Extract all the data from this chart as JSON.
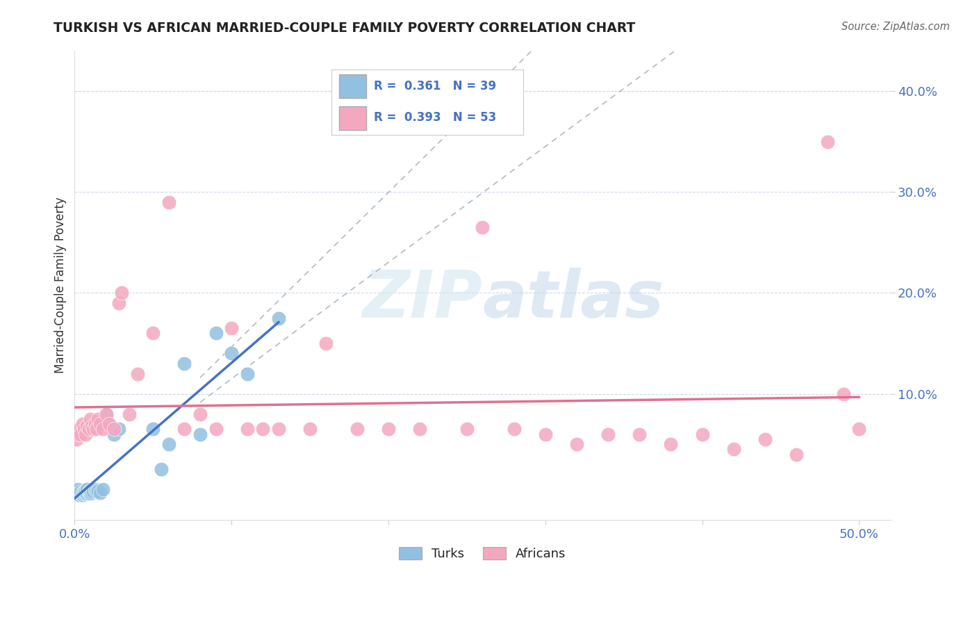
{
  "title": "TURKISH VS AFRICAN MARRIED-COUPLE FAMILY POVERTY CORRELATION CHART",
  "source": "Source: ZipAtlas.com",
  "ylabel": "Married-Couple Family Poverty",
  "xlim": [
    0.0,
    0.52
  ],
  "ylim": [
    -0.025,
    0.44
  ],
  "xtick_positions": [
    0.0,
    0.5
  ],
  "xtick_labels": [
    "0.0%",
    "50.0%"
  ],
  "ytick_positions": [
    0.1,
    0.2,
    0.3,
    0.4
  ],
  "ytick_labels": [
    "10.0%",
    "20.0%",
    "30.0%",
    "40.0%"
  ],
  "R_turks": 0.361,
  "N_turks": 39,
  "R_africans": 0.393,
  "N_africans": 53,
  "turks_color": "#92c0e0",
  "africans_color": "#f4a8c0",
  "turks_line_color": "#4472c4",
  "africans_line_color": "#e07090",
  "ci_color": "#b0b8c8",
  "grid_color": "#d0d8e8",
  "turks_x": [
    0.001,
    0.002,
    0.002,
    0.003,
    0.003,
    0.004,
    0.004,
    0.005,
    0.005,
    0.006,
    0.006,
    0.007,
    0.007,
    0.008,
    0.008,
    0.009,
    0.009,
    0.01,
    0.01,
    0.011,
    0.012,
    0.013,
    0.014,
    0.015,
    0.016,
    0.018,
    0.02,
    0.022,
    0.025,
    0.028,
    0.05,
    0.055,
    0.06,
    0.07,
    0.08,
    0.09,
    0.1,
    0.11,
    0.13
  ],
  "turks_y": [
    0.001,
    0.003,
    0.005,
    0.0,
    0.002,
    0.001,
    0.003,
    0.0,
    0.002,
    0.001,
    0.003,
    0.002,
    0.004,
    0.001,
    0.005,
    0.002,
    0.003,
    0.001,
    0.004,
    0.002,
    0.003,
    0.005,
    0.003,
    0.004,
    0.002,
    0.005,
    0.08,
    0.07,
    0.06,
    0.065,
    0.065,
    0.025,
    0.05,
    0.13,
    0.06,
    0.16,
    0.14,
    0.12,
    0.175
  ],
  "africans_x": [
    0.001,
    0.002,
    0.003,
    0.004,
    0.005,
    0.006,
    0.007,
    0.008,
    0.009,
    0.01,
    0.011,
    0.012,
    0.013,
    0.014,
    0.015,
    0.016,
    0.018,
    0.02,
    0.022,
    0.025,
    0.028,
    0.03,
    0.035,
    0.04,
    0.05,
    0.06,
    0.07,
    0.08,
    0.09,
    0.1,
    0.11,
    0.12,
    0.13,
    0.15,
    0.16,
    0.18,
    0.2,
    0.22,
    0.25,
    0.26,
    0.28,
    0.3,
    0.32,
    0.34,
    0.36,
    0.38,
    0.4,
    0.42,
    0.44,
    0.46,
    0.48,
    0.49,
    0.5
  ],
  "africans_y": [
    0.055,
    0.06,
    0.065,
    0.06,
    0.07,
    0.065,
    0.06,
    0.068,
    0.065,
    0.075,
    0.068,
    0.065,
    0.07,
    0.065,
    0.075,
    0.07,
    0.065,
    0.08,
    0.07,
    0.065,
    0.19,
    0.2,
    0.08,
    0.12,
    0.16,
    0.29,
    0.065,
    0.08,
    0.065,
    0.165,
    0.065,
    0.065,
    0.065,
    0.065,
    0.15,
    0.065,
    0.065,
    0.065,
    0.065,
    0.265,
    0.065,
    0.06,
    0.05,
    0.06,
    0.06,
    0.05,
    0.06,
    0.045,
    0.055,
    0.04,
    0.35,
    0.1,
    0.065
  ]
}
